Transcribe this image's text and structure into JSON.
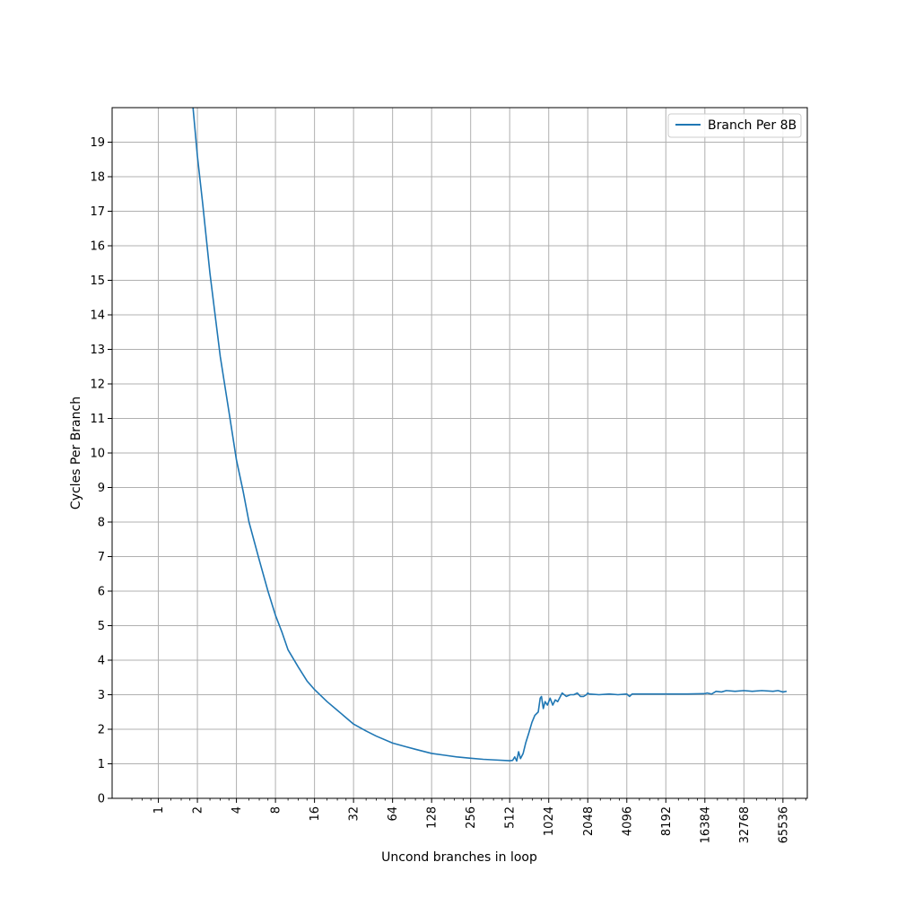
{
  "chart_data": {
    "type": "line",
    "title": "",
    "xlabel": "Uncond branches in loop",
    "ylabel": "Cycles Per Branch",
    "x_scale": "log2",
    "xlim": [
      0.44,
      101000
    ],
    "ylim": [
      0,
      20
    ],
    "x_ticks": [
      1,
      2,
      4,
      8,
      16,
      32,
      64,
      128,
      256,
      512,
      1024,
      2048,
      4096,
      8192,
      16384,
      32768,
      65536
    ],
    "x_tick_labels": [
      "1",
      "2",
      "4",
      "8",
      "16",
      "32",
      "64",
      "128",
      "256",
      "512",
      "1024",
      "2048",
      "4096",
      "8192",
      "16384",
      "32768",
      "65536"
    ],
    "y_ticks": [
      0,
      1,
      2,
      3,
      4,
      5,
      6,
      7,
      8,
      9,
      10,
      11,
      12,
      13,
      14,
      15,
      16,
      17,
      18,
      19
    ],
    "y_tick_labels": [
      "0",
      "1",
      "2",
      "3",
      "4",
      "5",
      "6",
      "7",
      "8",
      "9",
      "10",
      "11",
      "12",
      "13",
      "14",
      "15",
      "16",
      "17",
      "18",
      "19"
    ],
    "grid": true,
    "legend_position": "top-right",
    "series": [
      {
        "name": "Branch Per 8B",
        "color": "#1f77b4",
        "x": [
          1.8,
          2,
          2.2,
          2.5,
          3,
          3.5,
          4,
          4.5,
          5,
          6,
          7,
          8,
          9,
          10,
          12,
          14,
          16,
          20,
          24,
          32,
          40,
          48,
          64,
          80,
          96,
          128,
          160,
          200,
          256,
          320,
          400,
          512,
          540,
          560,
          580,
          600,
          620,
          650,
          680,
          720,
          760,
          800,
          850,
          880,
          900,
          930,
          960,
          1000,
          1050,
          1100,
          1150,
          1200,
          1300,
          1400,
          1500,
          1600,
          1700,
          1800,
          1900,
          2000,
          2048,
          2100,
          2500,
          3000,
          3500,
          4096,
          4300,
          4500,
          6000,
          8192,
          12000,
          16384,
          17000,
          18500,
          20000,
          22000,
          24000,
          28000,
          32768,
          38000,
          45000,
          55000,
          60000,
          65536,
          70000
        ],
        "values": [
          20.5,
          18.6,
          17.2,
          15.2,
          12.8,
          11.2,
          9.8,
          8.9,
          8.0,
          6.9,
          6.0,
          5.3,
          4.8,
          4.3,
          3.8,
          3.4,
          3.15,
          2.8,
          2.55,
          2.15,
          1.95,
          1.8,
          1.6,
          1.5,
          1.42,
          1.3,
          1.25,
          1.2,
          1.16,
          1.13,
          1.11,
          1.09,
          1.1,
          1.2,
          1.08,
          1.35,
          1.15,
          1.3,
          1.6,
          1.9,
          2.2,
          2.4,
          2.5,
          2.9,
          2.95,
          2.6,
          2.8,
          2.7,
          2.9,
          2.7,
          2.85,
          2.8,
          3.05,
          2.95,
          3.0,
          3.0,
          3.05,
          2.95,
          2.95,
          3.0,
          3.05,
          3.02,
          3.0,
          3.02,
          3.0,
          3.02,
          2.95,
          3.02,
          3.02,
          3.02,
          3.02,
          3.03,
          3.05,
          3.02,
          3.1,
          3.08,
          3.12,
          3.1,
          3.12,
          3.1,
          3.12,
          3.1,
          3.12,
          3.08,
          3.1
        ]
      }
    ]
  }
}
